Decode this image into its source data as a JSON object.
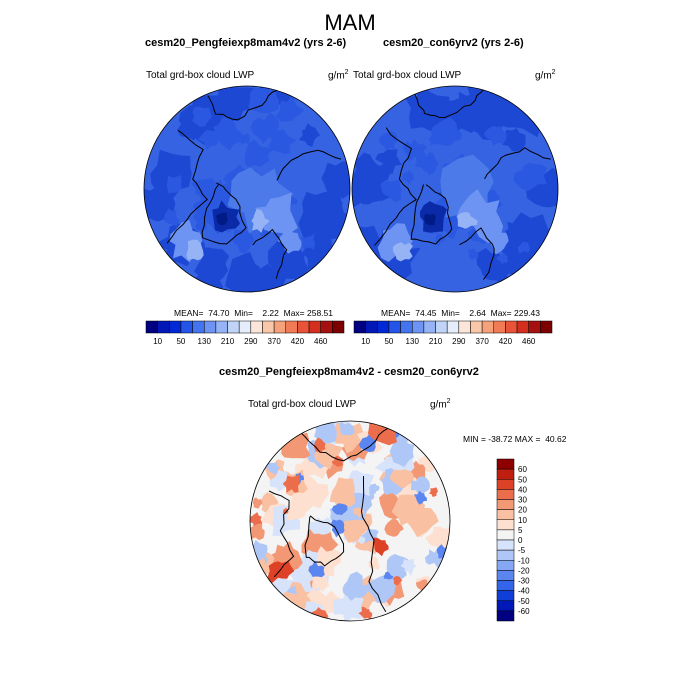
{
  "figure": {
    "title": "MAM"
  },
  "colors": {
    "abs_scale": [
      "#000080",
      "#0018b8",
      "#0029d6",
      "#2455e8",
      "#4475ee",
      "#6d94f2",
      "#96b4f5",
      "#c0d4f8",
      "#e5edfb",
      "#fce6d9",
      "#f9c7a9",
      "#f5a17a",
      "#f07b55",
      "#e8533a",
      "#d32f1e",
      "#a51111",
      "#7d0000"
    ],
    "diff_scale": [
      "#000080",
      "#0018b8",
      "#0f3fd8",
      "#3464ea",
      "#5b86f0",
      "#86a7f3",
      "#afc7f7",
      "#d7e3fa",
      "#f4f4f4",
      "#fde0d0",
      "#f9c0a2",
      "#f39875",
      "#ec6d4c",
      "#de4226",
      "#c01f0f",
      "#8e0000"
    ],
    "map_blue_dark": "#1d48d4",
    "map_blue_mid": "#3563e2",
    "map_blue_light": "#6d94f2"
  },
  "chart_data": [
    {
      "type": "heatmap",
      "projection": "north-polar-stereographic",
      "title": "cesm20_Pengfeiexp8mam4v2 (yrs 2-6)",
      "left_string": "Total grd-box cloud LWP",
      "units_base": "g/m",
      "units_exp": "2",
      "stats": {
        "mean": "74.70",
        "min": "2.22",
        "max": "258.51"
      },
      "stats_text": "MEAN=  74.70  Min=    2.22  Max= 258.51",
      "colorbar": {
        "orientation": "horizontal",
        "levels": [
          10,
          30,
          50,
          70,
          130,
          170,
          210,
          250,
          290,
          330,
          370,
          390,
          420,
          440,
          460
        ],
        "tick_labels": [
          "10",
          "50",
          "130",
          "210",
          "290",
          "370",
          "420",
          "460"
        ]
      }
    },
    {
      "type": "heatmap",
      "projection": "north-polar-stereographic",
      "title": "cesm20_con6yrv2 (yrs 2-6)",
      "left_string": "Total grd-box cloud LWP",
      "units_base": "g/m",
      "units_exp": "2",
      "stats": {
        "mean": "74.45",
        "min": "2.64",
        "max": "229.43"
      },
      "stats_text": "MEAN=  74.45  Min=    2.64  Max= 229.43",
      "colorbar": {
        "orientation": "horizontal",
        "levels": [
          10,
          30,
          50,
          70,
          130,
          170,
          210,
          250,
          290,
          330,
          370,
          390,
          420,
          440,
          460
        ],
        "tick_labels": [
          "10",
          "50",
          "130",
          "210",
          "290",
          "370",
          "420",
          "460"
        ]
      }
    },
    {
      "type": "heatmap",
      "projection": "north-polar-stereographic",
      "title": "cesm20_Pengfeiexp8mam4v2 - cesm20_con6yrv2",
      "left_string": "Total grd-box cloud LWP",
      "units_base": "g/m",
      "units_exp": "2",
      "stats": {
        "min": "-38.72",
        "max": "40.62"
      },
      "stats_text": "MIN = -38.72 MAX =  40.62",
      "colorbar": {
        "orientation": "vertical",
        "levels": [
          -60,
          -50,
          -40,
          -30,
          -20,
          -10,
          -5,
          0,
          5,
          10,
          20,
          30,
          40,
          50,
          60
        ],
        "tick_labels": [
          "60",
          "50",
          "40",
          "30",
          "20",
          "10",
          "5",
          "0",
          "-5",
          "-10",
          "-20",
          "-30",
          "-40",
          "-50",
          "-60"
        ]
      }
    }
  ]
}
